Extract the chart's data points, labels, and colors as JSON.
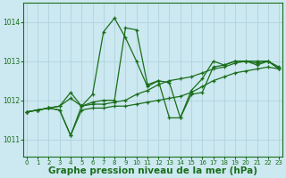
{
  "background_color": "#cce8f0",
  "grid_color": "#aacfda",
  "line_color": "#1a6e1a",
  "xlabel": "Graphe pression niveau de la mer (hPa)",
  "xlabel_fontsize": 7.5,
  "xticks": [
    0,
    1,
    2,
    3,
    4,
    5,
    6,
    7,
    8,
    9,
    10,
    11,
    12,
    13,
    14,
    15,
    16,
    17,
    18,
    19,
    20,
    21,
    22,
    23
  ],
  "yticks": [
    1011,
    1012,
    1013,
    1014
  ],
  "ylim": [
    1010.55,
    1014.5
  ],
  "xlim": [
    -0.3,
    23.3
  ],
  "series": [
    [
      1011.7,
      1011.75,
      1011.8,
      1011.75,
      1011.1,
      1011.85,
      1012.15,
      1013.75,
      1014.1,
      1013.6,
      1013.0,
      1012.35,
      1012.5,
      1011.55,
      1011.55,
      1012.15,
      1012.2,
      1012.85,
      1012.9,
      1013.0,
      1013.0,
      1012.95,
      1013.0,
      1012.8
    ],
    [
      1011.7,
      1011.75,
      1011.8,
      1011.85,
      1012.2,
      1011.85,
      1011.95,
      1012.0,
      1012.0,
      1013.85,
      1013.8,
      1012.4,
      1012.5,
      1012.45,
      1011.55,
      1012.25,
      1012.55,
      1013.0,
      1012.9,
      1013.0,
      1013.0,
      1012.9,
      1013.0,
      1012.8
    ],
    [
      1011.7,
      1011.75,
      1011.8,
      1011.85,
      1012.05,
      1011.85,
      1011.9,
      1011.9,
      1011.95,
      1012.0,
      1012.15,
      1012.25,
      1012.4,
      1012.5,
      1012.55,
      1012.6,
      1012.7,
      1012.8,
      1012.85,
      1012.95,
      1013.0,
      1013.0,
      1013.0,
      1012.85
    ],
    [
      1011.7,
      1011.75,
      1011.8,
      1011.75,
      1011.1,
      1011.75,
      1011.8,
      1011.8,
      1011.85,
      1011.85,
      1011.9,
      1011.95,
      1012.0,
      1012.05,
      1012.1,
      1012.2,
      1012.35,
      1012.5,
      1012.6,
      1012.7,
      1012.75,
      1012.8,
      1012.85,
      1012.8
    ]
  ]
}
